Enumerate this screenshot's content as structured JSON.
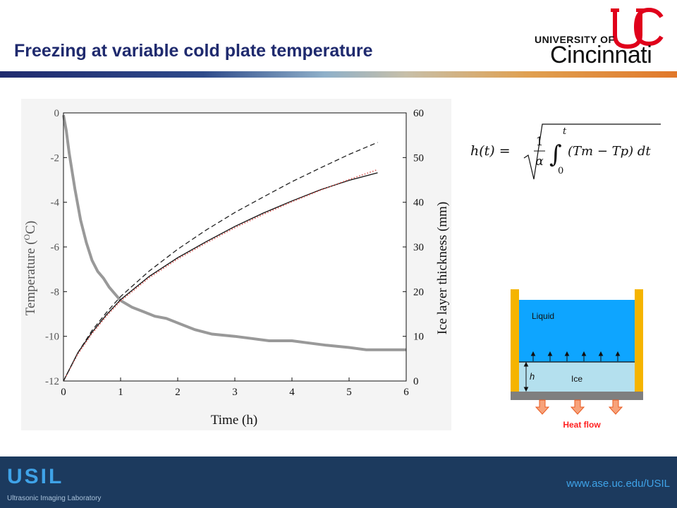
{
  "slide": {
    "title": "Freezing at variable cold plate temperature",
    "logo": {
      "line1": "UNIVERSITY OF",
      "line2": "Cincinnati"
    },
    "footer": {
      "lab_abbr": "USIL",
      "lab_name": "Ultrasonic Imaging Laboratory",
      "url": "www.ase.uc.edu/USIL"
    }
  },
  "formula": {
    "lhs": "h(t) =",
    "numerator": "1",
    "denominator": "α",
    "lower": "0",
    "upper": "t",
    "integrand": "(Tm − Tp) dt"
  },
  "diagram": {
    "liquid_label": "Liquid",
    "ice_label": "Ice",
    "h_label": "h",
    "heat_label": "Heat flow",
    "colors": {
      "liquid": "#0ea5ff",
      "ice": "#b4e0ee",
      "wall": "#f5b400",
      "plate": "#7f7f7f",
      "arrow": "#f7a27a",
      "heat_text": "#ff2020"
    }
  },
  "chart_data": {
    "type": "line",
    "xlabel": "Time (h)",
    "ylabel_left": "Temperature (",
    "ylabel_left_sup": "O",
    "ylabel_left_tail": "C)",
    "ylabel_right": "Ice layer thickness (mm)",
    "xlim": [
      0,
      6
    ],
    "ylim_left": [
      -12,
      0
    ],
    "ylim_right": [
      0,
      60
    ],
    "x_ticks": [
      "0",
      "1",
      "2",
      "3",
      "4",
      "5",
      "6"
    ],
    "y_left_ticks": [
      "0",
      "-2",
      "-4",
      "-6",
      "-8",
      "-10",
      "-12"
    ],
    "y_right_ticks": [
      "60",
      "50",
      "40",
      "30",
      "20",
      "10",
      "0"
    ],
    "series": [
      {
        "axis": "left",
        "color": "#999999",
        "style": "solid-thick",
        "x": [
          0,
          0.05,
          0.1,
          0.2,
          0.3,
          0.4,
          0.5,
          0.6,
          0.7,
          0.8,
          0.9,
          1.0,
          1.2,
          1.4,
          1.6,
          1.8,
          2.0,
          2.3,
          2.6,
          3.0,
          3.3,
          3.6,
          4.0,
          4.3,
          4.6,
          5.0,
          5.3,
          5.6,
          6.0
        ],
        "values": [
          -0.1,
          -0.8,
          -1.8,
          -3.4,
          -4.8,
          -5.8,
          -6.6,
          -7.1,
          -7.4,
          -7.8,
          -8.1,
          -8.4,
          -8.7,
          -8.9,
          -9.1,
          -9.2,
          -9.4,
          -9.7,
          -9.9,
          -10.0,
          -10.1,
          -10.2,
          -10.2,
          -10.3,
          -10.4,
          -10.5,
          -10.6,
          -10.6,
          -10.6
        ]
      },
      {
        "axis": "right",
        "color": "#111111",
        "style": "solid",
        "x": [
          0,
          0.25,
          0.5,
          0.75,
          1.0,
          1.5,
          2.0,
          2.5,
          3.0,
          3.5,
          4.0,
          4.5,
          5.0,
          5.5
        ],
        "values": [
          0,
          6.3,
          10.9,
          14.8,
          18.2,
          23.4,
          27.6,
          31.2,
          34.6,
          37.6,
          40.3,
          42.8,
          44.9,
          46.6
        ]
      },
      {
        "axis": "right",
        "color": "#d9534f",
        "style": "dotted",
        "x": [
          0,
          0.25,
          0.5,
          0.75,
          1.0,
          1.5,
          2.0,
          2.5,
          3.0,
          3.5,
          4.0,
          4.5,
          5.0,
          5.5
        ],
        "values": [
          0,
          6.0,
          10.6,
          14.5,
          17.9,
          23.1,
          27.3,
          30.9,
          34.3,
          37.3,
          40.1,
          42.7,
          45.1,
          47.3
        ]
      },
      {
        "axis": "right",
        "color": "#222222",
        "style": "dashed",
        "x": [
          0,
          0.25,
          0.5,
          0.75,
          1.0,
          1.5,
          2.0,
          2.5,
          3.0,
          3.5,
          4.0,
          4.5,
          5.0,
          5.5
        ],
        "values": [
          0,
          6.3,
          11.3,
          15.3,
          18.9,
          24.6,
          29.5,
          33.8,
          37.7,
          41.2,
          44.6,
          47.7,
          50.7,
          53.4
        ]
      }
    ]
  }
}
